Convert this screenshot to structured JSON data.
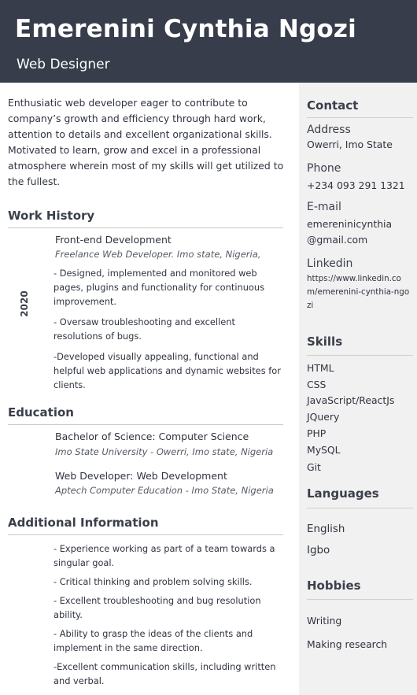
{
  "header": {
    "name": "Emerenini Cynthia Ngozi",
    "role": "Web Designer"
  },
  "summary": "Enthusiatic web developer eager to contribute to company’s growth and efficiency through hard work, attention to details and excellent organizational skills. Motivated to learn, grow and excel in a professional atmosphere wherein most of my skills will get utilized to the fullest.",
  "work_history": {
    "title": "Work History",
    "year": "2020",
    "job_title": "Front-end Development",
    "job_sub": "Freelance Web Developer. Imo state, Nigeria,",
    "bullets": [
      "- Designed, implemented and monitored web pages, plugins and functionality for  continuous improvement.",
      "- Oversaw troubleshooting and excellent resolutions of bugs.",
      "-Developed visually appealing, functional and helpful web applications and dynamic websites for clients."
    ]
  },
  "education": {
    "title": "Education",
    "items": [
      {
        "degree": "Bachelor of Science: Computer Science",
        "school": "Imo State University - Owerri, Imo state, Nigeria"
      },
      {
        "degree": "Web Developer: Web Development",
        "school": "Aptech Computer Education - Imo State, Nigeria"
      }
    ]
  },
  "additional": {
    "title": "Additional Information",
    "bullets": [
      "- Experience working as part of a team towards a singular goal.",
      "- Critical thinking and problem solving skills.",
      "- Excellent troubleshooting and bug resolution ability.",
      "- Ability to grasp the ideas of the clients and implement in the same direction.",
      "-Excellent communication skills, including written and verbal."
    ]
  },
  "contact": {
    "title": "Contact",
    "address_label": "Address",
    "address": "Owerri, Imo State",
    "phone_label": "Phone",
    "phone": "+234 093 291 1321",
    "email_label": "E-mail",
    "email_line1": "emereninicynthia",
    "email_line2": "@gmail.com",
    "linkedin_label": "Linkedin",
    "linkedin": "https://www.linkedin.com/emerenini-cynthia-ngozi"
  },
  "skills": {
    "title": "Skills",
    "items": [
      "HTML",
      "CSS",
      "JavaScript/ReactJs",
      "JQuery",
      "PHP",
      "MySQL",
      "Git"
    ]
  },
  "languages": {
    "title": "Languages",
    "items": [
      "English",
      "Igbo"
    ]
  },
  "hobbies": {
    "title": "Hobbies",
    "items": [
      "Writing",
      "Making research"
    ]
  }
}
